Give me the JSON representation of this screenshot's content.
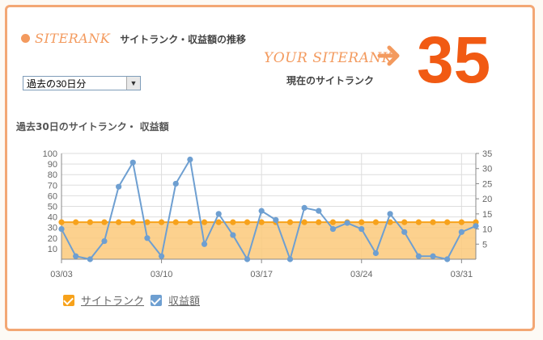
{
  "header": {
    "logo_text": "SITERANK",
    "title": "サイトランク・収益額の推移"
  },
  "rank": {
    "label": "YOUR SITERANK",
    "caption": "現在のサイトランク",
    "value": "35"
  },
  "period_select": {
    "value": "過去の30日分"
  },
  "chart_title": "過去30日のサイトランク・ 収益額",
  "legend": [
    {
      "label": "サイトランク",
      "color": "#f7a21b"
    },
    {
      "label": "収益額",
      "color": "#6e9fd1"
    }
  ],
  "colors": {
    "accent": "#f15a13",
    "border": "#f3a774",
    "rank": "#f7a21b",
    "revenue": "#6e9fd1"
  },
  "chart_data": {
    "type": "line",
    "x": [
      "03/03",
      "03/04",
      "03/05",
      "03/06",
      "03/07",
      "03/08",
      "03/09",
      "03/10",
      "03/11",
      "03/12",
      "03/13",
      "03/14",
      "03/15",
      "03/16",
      "03/17",
      "03/18",
      "03/19",
      "03/20",
      "03/21",
      "03/22",
      "03/23",
      "03/24",
      "03/25",
      "03/26",
      "03/27",
      "03/28",
      "03/29",
      "03/30",
      "03/31",
      "04/01"
    ],
    "xticks": [
      "03/03",
      "03/10",
      "03/17",
      "03/24",
      "03/31"
    ],
    "ylim_left": [
      0,
      100
    ],
    "yticks_left": [
      10,
      20,
      30,
      40,
      50,
      60,
      70,
      80,
      90,
      100
    ],
    "ylim_right": [
      0,
      35
    ],
    "yticks_right": [
      5,
      10,
      15,
      20,
      25,
      30,
      35
    ],
    "grid": true,
    "series": [
      {
        "name": "サイトランク",
        "axis": "left",
        "type": "area",
        "values": [
          35,
          35,
          35,
          35,
          35,
          35,
          35,
          35,
          35,
          35,
          35,
          35,
          35,
          35,
          35,
          35,
          35,
          35,
          35,
          35,
          35,
          35,
          35,
          35,
          35,
          35,
          35,
          35,
          35,
          35
        ]
      },
      {
        "name": "収益額",
        "axis": "right",
        "type": "line",
        "values": [
          10,
          1,
          0,
          6,
          24,
          32,
          7,
          1,
          25,
          33,
          5,
          15,
          8,
          0,
          16,
          13,
          0,
          17,
          16,
          10,
          12,
          10,
          2,
          15,
          9,
          1,
          1,
          0,
          9,
          11
        ]
      }
    ]
  }
}
